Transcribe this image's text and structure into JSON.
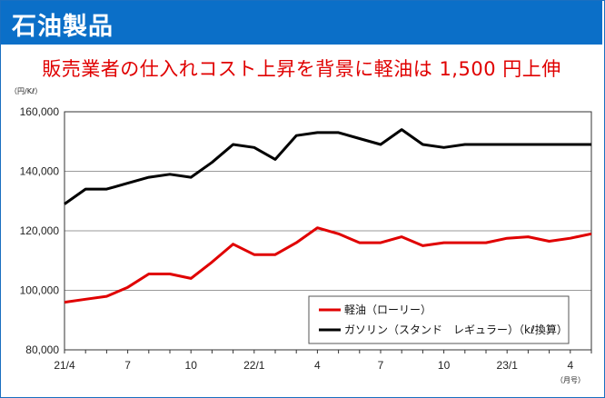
{
  "header": {
    "title": "石油製品",
    "subtitle": "販売業者の仕入れコスト上昇を背景に軽油は 1,500 円上伸"
  },
  "colors": {
    "banner": "#0b6fc8",
    "subtitle": "#e00000",
    "diesel": "#e00000",
    "gasoline": "#000000"
  },
  "chart_data": {
    "type": "line",
    "title": "",
    "y_unit": "（円/Kℓ）",
    "x_unit": "（月号）",
    "ylim": [
      80000,
      160000
    ],
    "y_ticks": [
      80000,
      100000,
      120000,
      140000,
      160000
    ],
    "y_tick_labels": [
      "80,000",
      "100,000",
      "120,000",
      "140,000",
      "160,000"
    ],
    "x_tick_labels": [
      {
        "index": 0,
        "label": "21/4"
      },
      {
        "index": 3,
        "label": "7"
      },
      {
        "index": 6,
        "label": "10"
      },
      {
        "index": 9,
        "label": "22/1"
      },
      {
        "index": 12,
        "label": "4"
      },
      {
        "index": 15,
        "label": "7"
      },
      {
        "index": 18,
        "label": "10"
      },
      {
        "index": 21,
        "label": "23/1"
      },
      {
        "index": 24,
        "label": "4"
      }
    ],
    "x_count": 26,
    "grid": "horizontal",
    "legend_position": "bottom-right",
    "series": [
      {
        "name": "軽油（ローリー）",
        "color": "#e00000",
        "values": [
          96000,
          97000,
          98000,
          101000,
          105500,
          105500,
          104000,
          109500,
          115500,
          112000,
          112000,
          116000,
          121000,
          119000,
          116000,
          116000,
          118000,
          115000,
          116000,
          116000,
          116000,
          117500,
          118000,
          116500,
          117500,
          119000
        ]
      },
      {
        "name": "ガソリン（スタンド　レギュラー）（kℓ換算）",
        "color": "#000000",
        "values": [
          129000,
          134000,
          134000,
          136000,
          138000,
          139000,
          138000,
          143000,
          149000,
          148000,
          144000,
          152000,
          153000,
          153000,
          151000,
          149000,
          154000,
          149000,
          148000,
          149000,
          149000,
          149000,
          149000,
          149000,
          149000,
          149000
        ]
      }
    ]
  }
}
